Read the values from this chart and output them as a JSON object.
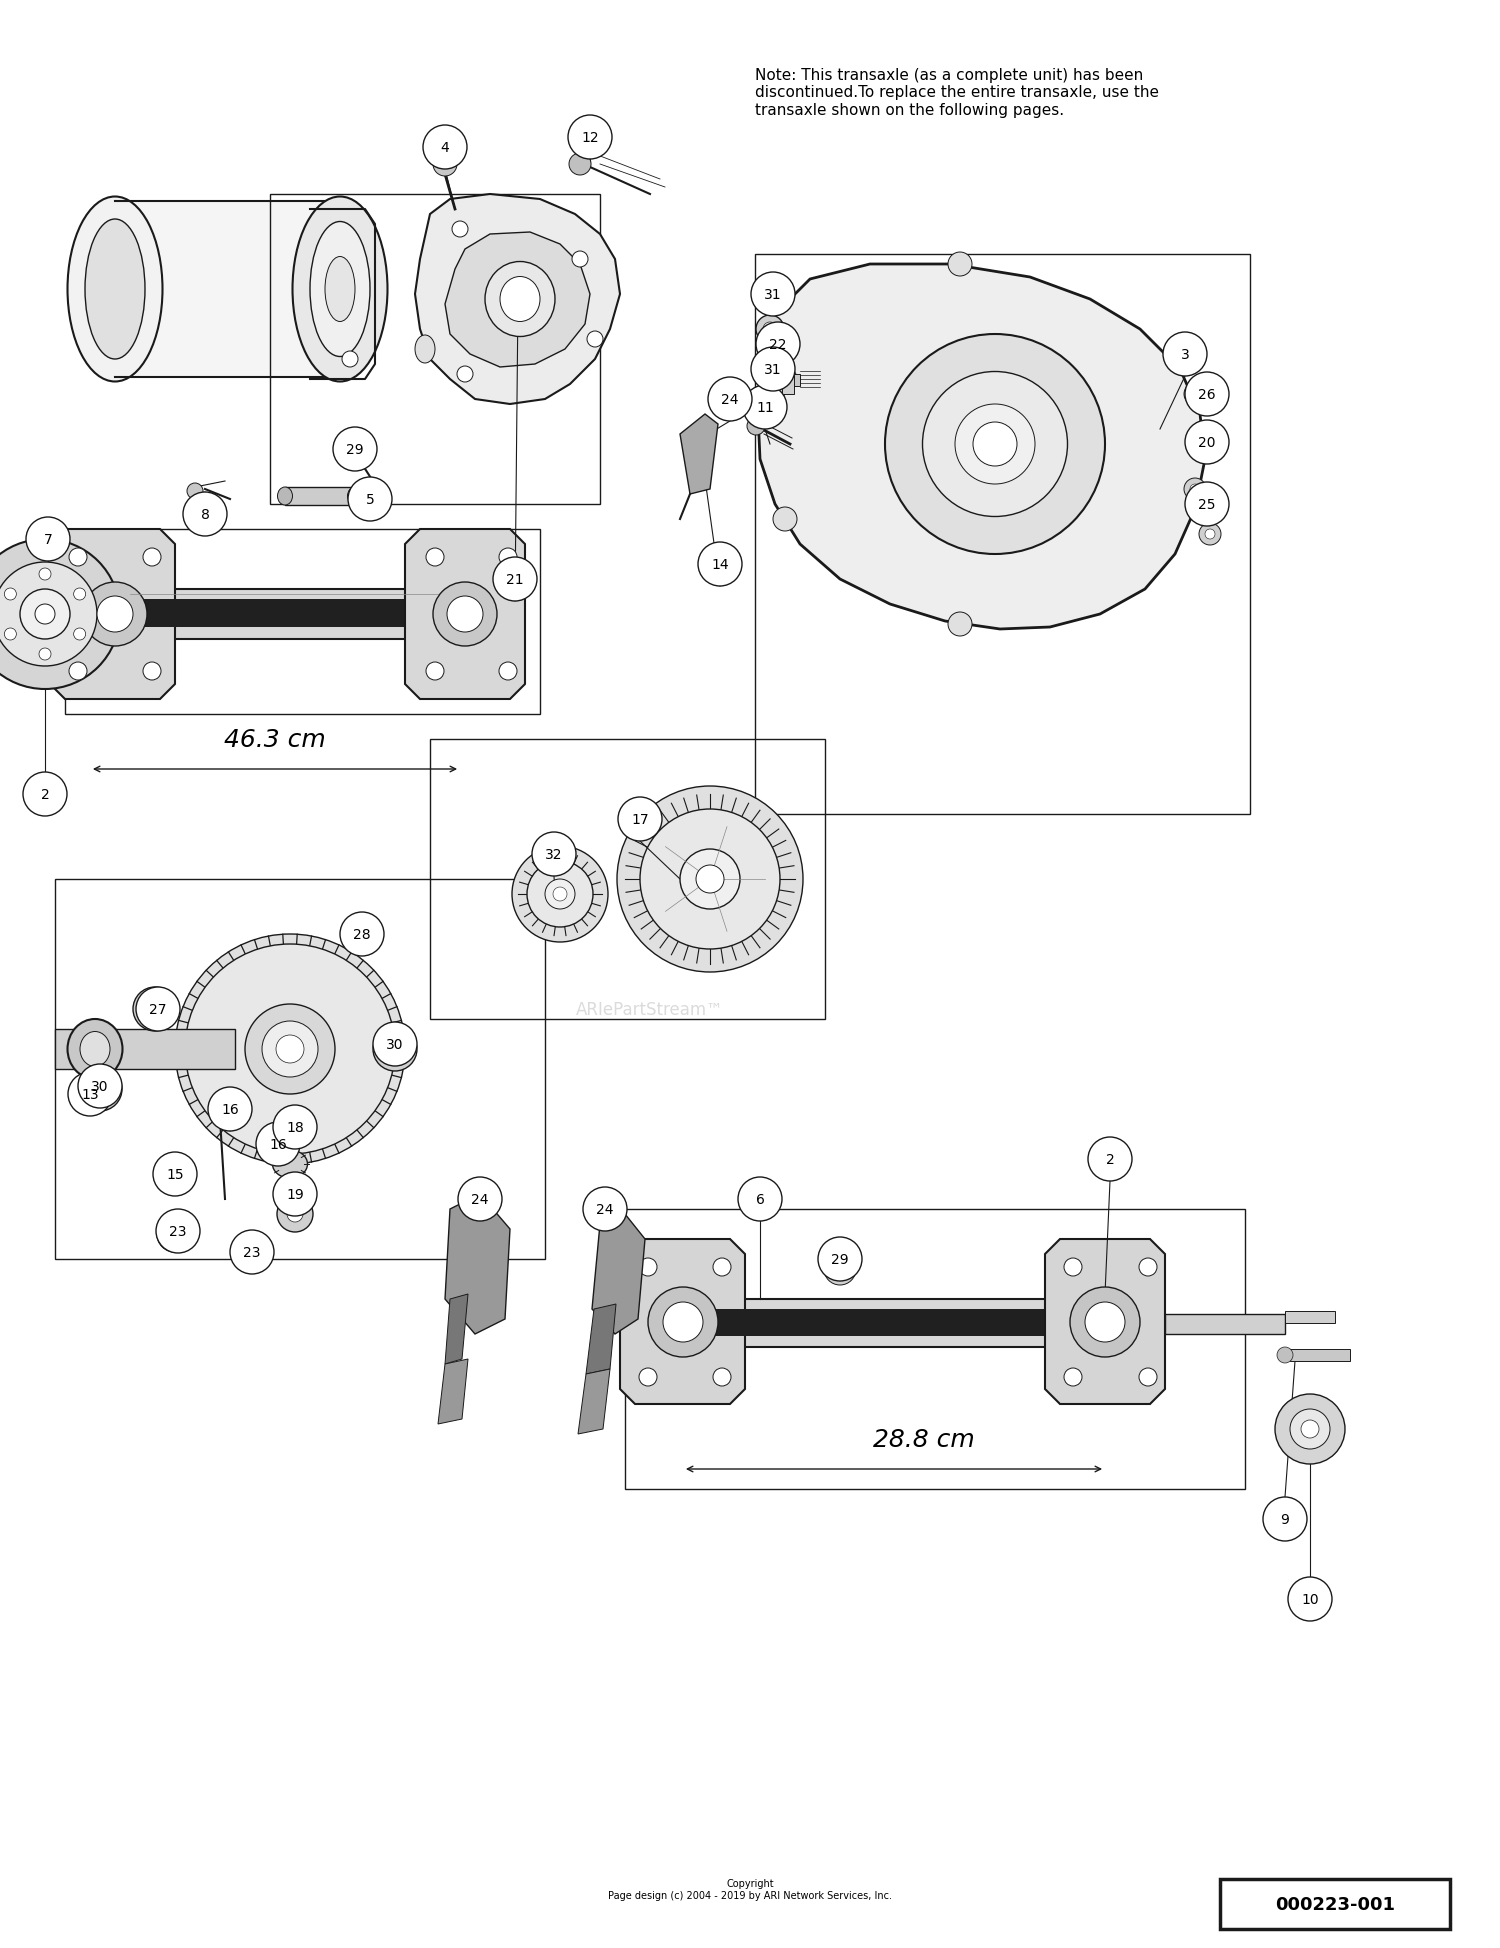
{
  "bg_color": "#ffffff",
  "line_color": "#1a1a1a",
  "fig_width": 15.0,
  "fig_height": 19.49,
  "note_text": "Note: This transaxle (as a complete unit) has been\ndiscontinued.To replace the entire transaxle, use the\ntransaxle shown on the following pages.",
  "copyright_text": "Copyright\nPage design (c) 2004 - 2019 by ARI Network Services, Inc.",
  "part_number_text": "000223-001",
  "watermark": "ARIePartStream™",
  "dim1_text": "46.3 cm",
  "dim2_text": "28.8 cm"
}
